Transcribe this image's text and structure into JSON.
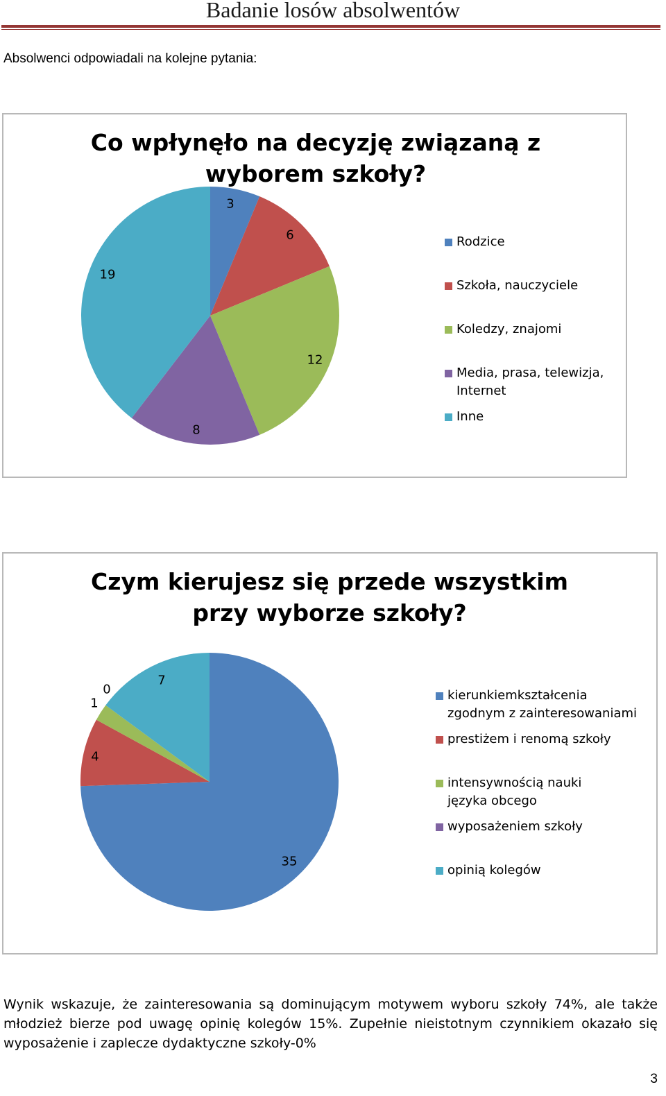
{
  "header": {
    "title": "Badanie losów absolwentów"
  },
  "intro": "Absolwenci odpowiadali na kolejne pytania:",
  "chart_data": [
    {
      "type": "pie",
      "title": "Co wpłynęło na decyzję związaną z wyborem szkoły?",
      "categories": [
        "Rodzice",
        "Szkoła, nauczyciele",
        "Koledzy, znajomi",
        "Media, prasa, telewizja, Internet",
        "Inne"
      ],
      "values": [
        3,
        6,
        12,
        8,
        19
      ],
      "data_labels": [
        "3",
        "6",
        "12",
        "8",
        "19"
      ],
      "colors": [
        "#4f81bd",
        "#c0504d",
        "#9bbb59",
        "#8064a2",
        "#4bacc6"
      ],
      "legend": "right",
      "start": "12 o'clock, clockwise"
    },
    {
      "type": "pie",
      "title": "Czym kierujesz się przede wszystkim przy wyborze szkoły?",
      "categories": [
        "kierunkiemkształcenia zgodnym z zainteresowaniami",
        "prestiżem i renomą szkoły",
        "intensywnością nauki języka obcego",
        "wyposażeniem szkoły",
        "opinią kolegów"
      ],
      "values": [
        35,
        4,
        1,
        0,
        7
      ],
      "data_labels": [
        "35",
        "4",
        "1",
        "0",
        "7"
      ],
      "colors": [
        "#4f81bd",
        "#c0504d",
        "#9bbb59",
        "#8064a2",
        "#4bacc6"
      ],
      "legend": "right",
      "start": "12 o'clock, clockwise"
    }
  ],
  "conclusion": "Wynik wskazuje, że zainteresowania są dominującym motywem wyboru szkoły 74%, ale także młodzież bierze pod uwagę opinię kolegów 15%. Zupełnie nieistotnym czynnikiem okazało się wyposażenie i zaplecze dydaktyczne szkoły-0%",
  "page_number": "3"
}
